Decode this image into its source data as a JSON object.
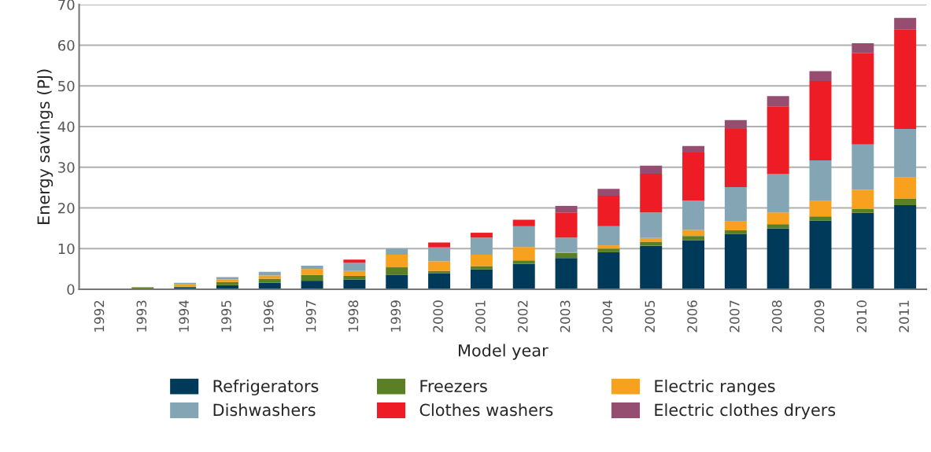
{
  "chart_data": {
    "type": "bar",
    "stacked": true,
    "xlabel": "Model year",
    "ylabel": "Energy savings (PJ)",
    "categories": [
      "1992",
      "1993",
      "1994",
      "1995",
      "1996",
      "1997",
      "1998",
      "1999",
      "2000",
      "2001",
      "2002",
      "2003",
      "2004",
      "2005",
      "2006",
      "2007",
      "2008",
      "2009",
      "2010",
      "2011"
    ],
    "series": [
      {
        "name": "Refrigerators",
        "color": "#003a5a",
        "values": [
          null,
          null,
          0.4,
          1.0,
          1.6,
          2.1,
          2.4,
          3.5,
          3.9,
          4.9,
          6.3,
          7.7,
          9.1,
          10.7,
          12.1,
          13.6,
          15.0,
          16.9,
          18.8,
          20.7
        ]
      },
      {
        "name": "Freezers",
        "color": "#5a7f24",
        "values": [
          null,
          0.5,
          0.3,
          0.8,
          1.0,
          1.4,
          0.9,
          1.9,
          0.6,
          0.8,
          0.8,
          1.2,
          0.9,
          1.0,
          1.0,
          0.9,
          1.0,
          1.0,
          0.9,
          1.6
        ]
      },
      {
        "name": "Electric ranges",
        "color": "#f7a11f",
        "values": [
          null,
          null,
          0.5,
          0.6,
          0.8,
          1.5,
          1.2,
          3.1,
          2.4,
          2.8,
          3.3,
          0.2,
          0.8,
          0.9,
          1.5,
          2.3,
          2.9,
          3.8,
          4.8,
          5.2
        ]
      },
      {
        "name": "Dishwashers",
        "color": "#84a6b4",
        "values": [
          null,
          null,
          0.4,
          0.6,
          0.9,
          0.8,
          2.0,
          1.5,
          3.4,
          4.2,
          5.1,
          3.6,
          4.7,
          6.3,
          7.2,
          8.3,
          9.4,
          10.0,
          11.1,
          11.9
        ]
      },
      {
        "name": "Clothes washers",
        "color": "#ee1c25",
        "values": [
          null,
          null,
          null,
          null,
          null,
          null,
          0.8,
          null,
          1.2,
          1.2,
          1.6,
          6.2,
          7.5,
          9.5,
          11.8,
          14.3,
          16.7,
          19.5,
          22.4,
          24.5
        ]
      },
      {
        "name": "Electric clothes dryers",
        "color": "#954d70",
        "values": [
          null,
          null,
          null,
          null,
          null,
          null,
          null,
          null,
          null,
          null,
          null,
          1.6,
          1.7,
          2.0,
          1.6,
          2.2,
          2.5,
          2.4,
          2.5,
          2.8
        ]
      }
    ],
    "ylim": [
      0,
      70
    ],
    "yticks": [
      0,
      10,
      20,
      30,
      40,
      50,
      60,
      70
    ],
    "grid": "y",
    "legend": "bottom"
  }
}
